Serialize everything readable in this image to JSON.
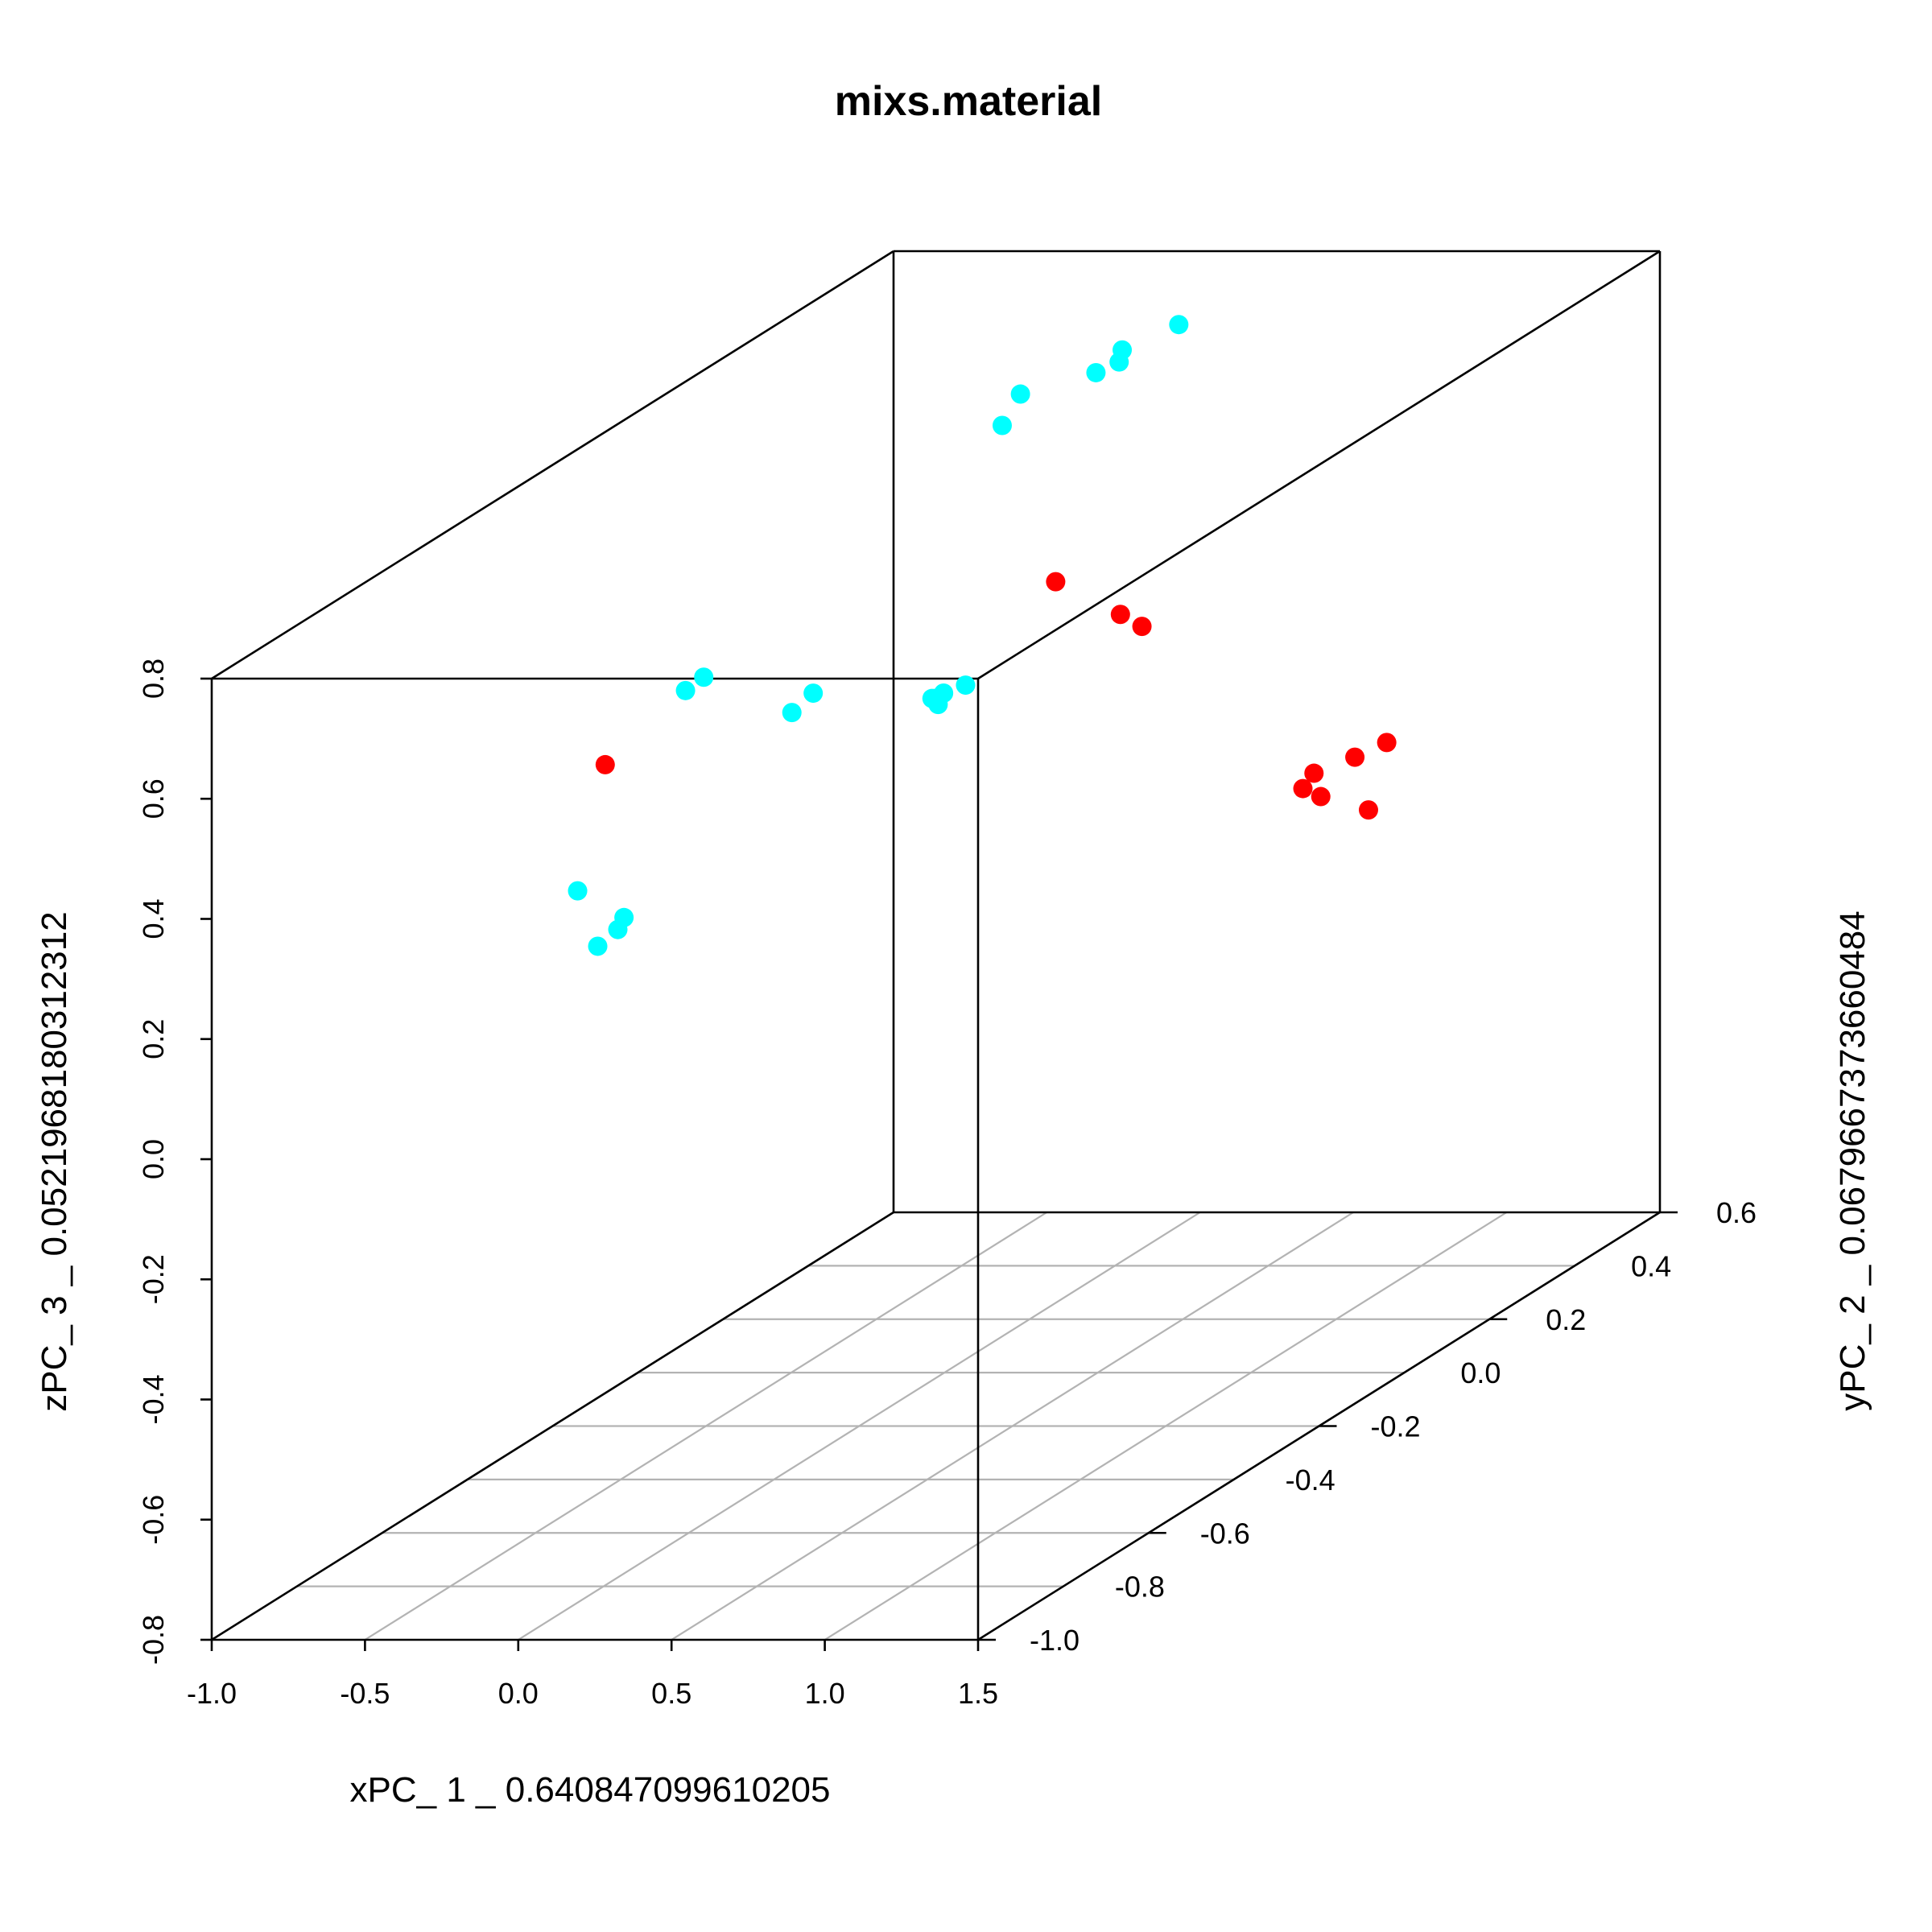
{
  "chart_data": {
    "type": "scatter",
    "projection": "3d",
    "title": "mixs.material",
    "xlabel": "xPC_ 1 _ 0.640847099610205",
    "ylabel": "yPC_ 2 _ 0.0679667373660484",
    "zlabel": "zPC_ 3 _ 0.0521968180312312",
    "xlim": [
      -1.0,
      1.5
    ],
    "ylim": [
      -1.0,
      0.6
    ],
    "zlim": [
      -0.8,
      0.8
    ],
    "x_ticks": [
      "-1.0",
      "-0.5",
      "0.0",
      "0.5",
      "1.0",
      "1.5"
    ],
    "y_ticks": [
      "-1.0",
      "-0.8",
      "-0.6",
      "-0.4",
      "-0.2",
      "0.0",
      "0.2",
      "0.4",
      "0.6"
    ],
    "z_ticks": [
      "-0.8",
      "-0.6",
      "-0.4",
      "-0.2",
      "0.0",
      "0.2",
      "0.4",
      "0.6",
      "0.8"
    ],
    "grid": "xy-floor",
    "legend": "none",
    "series": [
      {
        "color": "#00ffff",
        "points": [
          [
            0.0,
            0.55,
            0.7
          ],
          [
            0.01,
            0.41,
            0.72
          ],
          [
            0.0,
            0.41,
            0.7
          ],
          [
            -0.02,
            0.37,
            0.7
          ],
          [
            -0.03,
            0.2,
            0.74
          ],
          [
            -0.02,
            0.15,
            0.71
          ],
          [
            -0.07,
            0.1,
            0.3
          ],
          [
            -0.1,
            0.07,
            0.3
          ],
          [
            -0.1,
            0.05,
            0.3
          ],
          [
            -0.09,
            0.05,
            0.29
          ],
          [
            -0.11,
            0.05,
            0.3
          ],
          [
            -0.15,
            -0.2,
            0.42
          ],
          [
            -0.15,
            -0.25,
            0.41
          ],
          [
            -0.09,
            -0.5,
            0.58
          ],
          [
            -0.08,
            -0.55,
            0.58
          ],
          [
            -0.1,
            -0.68,
            0.26
          ],
          [
            -0.12,
            -0.68,
            0.24
          ],
          [
            -0.13,
            -0.72,
            0.23
          ],
          [
            -0.14,
            -0.76,
            0.34
          ]
        ]
      },
      {
        "color": "#ff0000",
        "points": [
          [
            -0.05,
            -0.76,
            0.55
          ],
          [
            0.7,
            -0.04,
            0.46
          ],
          [
            0.78,
            -0.3,
            0.65
          ],
          [
            0.88,
            -0.22,
            0.56
          ],
          [
            1.1,
            0.05,
            0.15
          ],
          [
            1.15,
            0.04,
            0.18
          ],
          [
            1.2,
            0.02,
            0.15
          ],
          [
            1.2,
            0.1,
            0.18
          ],
          [
            1.29,
            0.11,
            0.2
          ],
          [
            1.3,
            0.06,
            0.11
          ]
        ]
      }
    ]
  }
}
